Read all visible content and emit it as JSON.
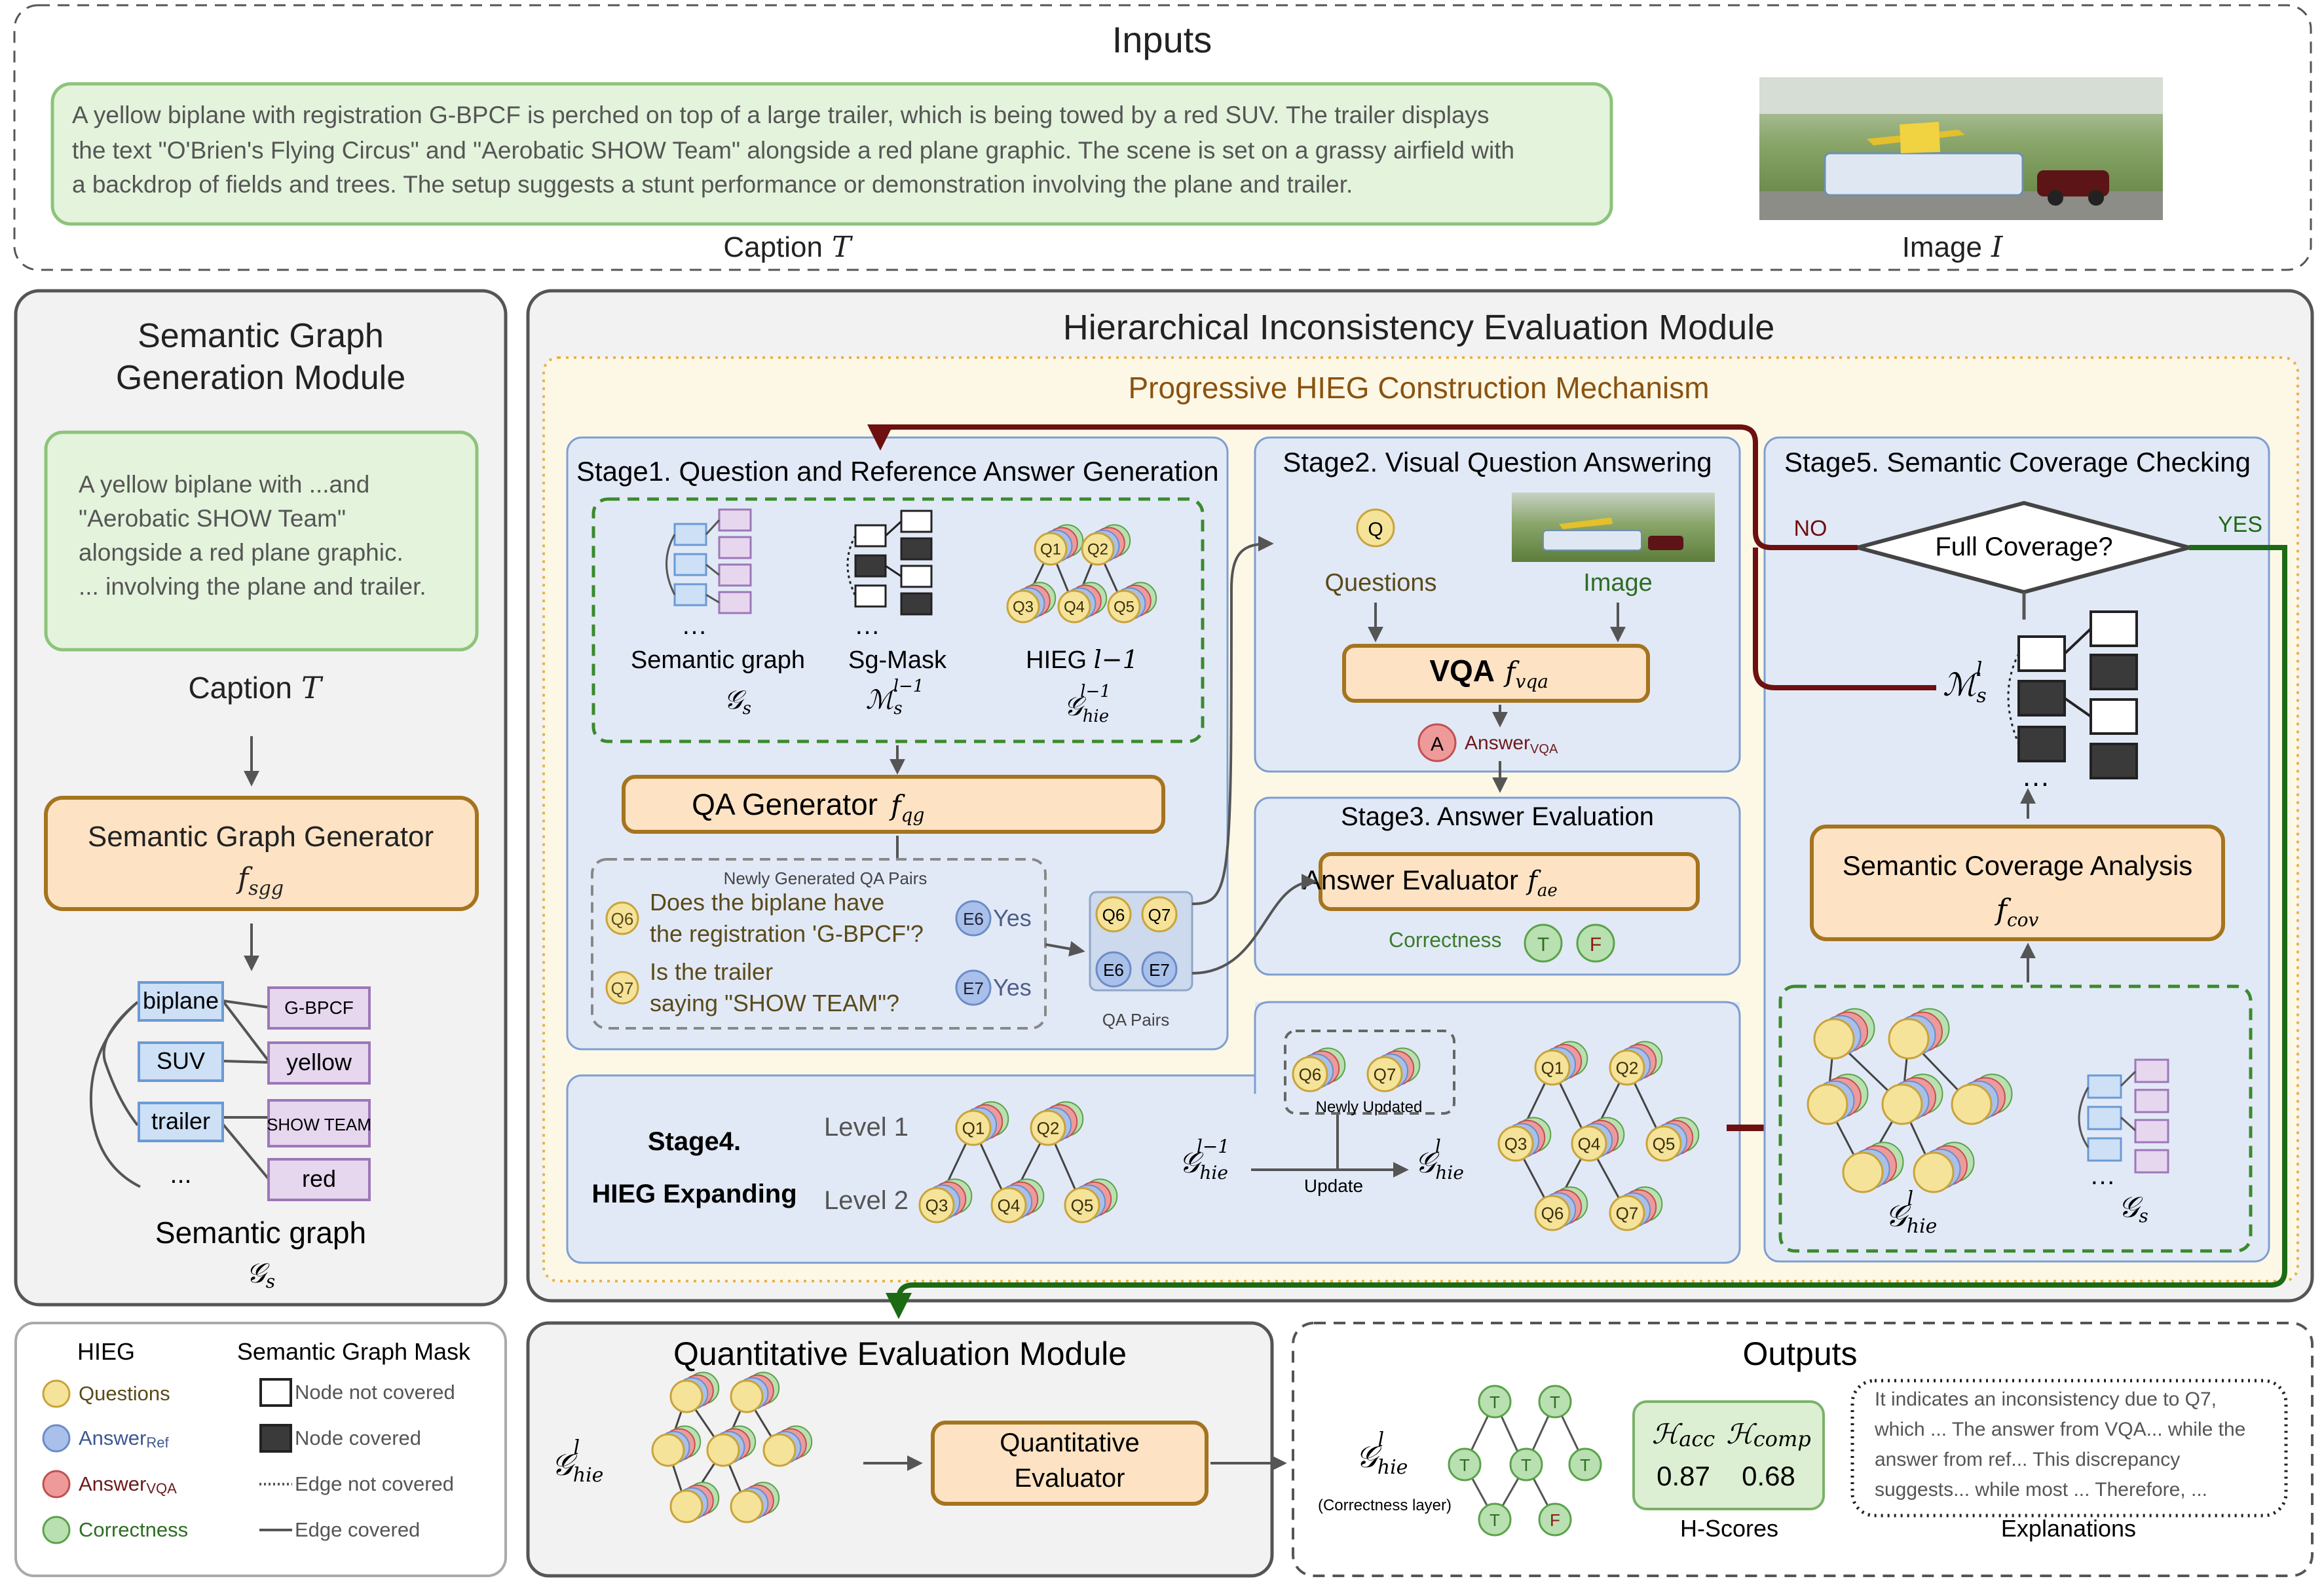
{
  "inputs": {
    "title": "Inputs",
    "caption_lines": [
      "A yellow biplane with registration G-BPCF is perched on top of a large trailer, which is being towed by a red SUV. The trailer displays",
      "the text \"O'Brien's Flying Circus\" and \"Aerobatic SHOW Team\" alongside a red plane graphic. The scene is set on a grassy airfield with",
      "a backdrop of fields and trees. The setup suggests a stunt performance or demonstration involving the plane and trailer."
    ],
    "caption_label": "Caption",
    "caption_symbol": "T",
    "image_label": "Image",
    "image_symbol": "I"
  },
  "sgg_module": {
    "title_lines": [
      "Semantic Graph",
      "Generation Module"
    ],
    "caption_box_lines": [
      "A yellow biplane with ...and",
      "\"Aerobatic SHOW Team\"",
      "alongside a red plane graphic.",
      "... involving the plane and trailer."
    ],
    "caption_label": "Caption",
    "caption_symbol": "T",
    "generator_title": "Semantic Graph Generator",
    "generator_symbol": "f_sgg",
    "nodes_left": [
      "biplane",
      "SUV",
      "trailer",
      "..."
    ],
    "nodes_right": [
      "G-BPCF",
      "yellow",
      "SHOW TEAM",
      "red"
    ],
    "graph_label": "Semantic graph",
    "graph_symbol": "G_s"
  },
  "hie_module": {
    "title": "Hierarchical Inconsistency Evaluation Module",
    "mechanism_title": "Progressive HIEG Construction Mechanism",
    "stage1": {
      "title": "Stage1. Question and Reference Answer Generation",
      "semantic_graph_label": "Semantic graph",
      "semantic_graph_symbol": "G_s",
      "sgmask_label": "Sg-Mask",
      "sgmask_symbol": "M_s^(l-1)",
      "hieg_label": "HIEG l-1",
      "hieg_symbol": "G_hie^(l-1)",
      "hieg_nodes": [
        "Q1",
        "Q2",
        "Q3",
        "Q4",
        "Q5"
      ],
      "generator_title": "QA Generator",
      "generator_symbol": "f_qg",
      "new_pairs_label": "Newly Generated QA Pairs",
      "qa_pairs": [
        {
          "q": "Q6",
          "lines": [
            "Does the biplane have",
            "the registration 'G-BPCF'?"
          ],
          "e": "E6",
          "answer": "Yes"
        },
        {
          "q": "Q7",
          "lines": [
            "Is the trailer",
            "saying \"SHOW TEAM\"?"
          ],
          "e": "E7",
          "answer": "Yes"
        }
      ],
      "qa_pairs_label": "QA Pairs"
    },
    "stage2": {
      "title": "Stage2. Visual Question Answering",
      "q_badge": "Q",
      "questions_label": "Questions",
      "image_label": "Image",
      "vqa_title": "VQA",
      "vqa_symbol": "f_vqa",
      "a_badge": "A",
      "answer_label": "Answer",
      "answer_sub": "VQA"
    },
    "stage3": {
      "title": "Stage3. Answer Evaluation",
      "evaluator_title": "Answer Evaluator",
      "evaluator_symbol": "f_ae",
      "correctness_label": "Correctness",
      "t_badge": "T",
      "f_badge": "F"
    },
    "stage4": {
      "title_lines": [
        "Stage4.",
        "HIEG Expanding"
      ],
      "level1": "Level 1",
      "level2": "Level 2",
      "level1_nodes": [
        "Q1",
        "Q2"
      ],
      "level2_nodes": [
        "Q3",
        "Q4",
        "Q5"
      ],
      "prev_symbol": "G_hie^(l-1)",
      "next_symbol": "G_hie^l",
      "update_label": "Update",
      "newly_updated_label": "Newly Updated",
      "new_nodes": [
        "Q6",
        "Q7"
      ],
      "result_nodes": [
        "Q1",
        "Q2",
        "Q3",
        "Q4",
        "Q5",
        "Q6",
        "Q7"
      ]
    },
    "stage5": {
      "title": "Stage5. Semantic Coverage Checking",
      "decision": "Full Coverage?",
      "no_label": "NO",
      "yes_label": "YES",
      "mask_symbol": "M_s^l",
      "analysis_title": "Semantic Coverage Analysis",
      "analysis_symbol": "f_cov",
      "hieg_symbol": "G_hie^l",
      "graph_symbol": "G_s"
    }
  },
  "legend": {
    "hieg_title": "HIEG",
    "mask_title": "Semantic Graph Mask",
    "questions": "Questions",
    "answer_ref": "Answer",
    "answer_ref_sub": "Ref",
    "answer_vqa": "Answer",
    "answer_vqa_sub": "VQA",
    "correctness": "Correctness",
    "node_not_covered": "Node not covered",
    "node_covered": "Node covered",
    "edge_not_covered": "Edge not covered",
    "edge_covered": "Edge covered"
  },
  "qe_module": {
    "title": "Quantitative Evaluation Module",
    "input_symbol": "G_hie^l",
    "evaluator_lines": [
      "Quantitative",
      "Evaluator"
    ]
  },
  "outputs": {
    "title": "Outputs",
    "graph_symbol": "G_hie^l",
    "graph_note": "(Correctness layer)",
    "scores": [
      {
        "symbol": "H_acc",
        "value": "0.87"
      },
      {
        "symbol": "H_comp",
        "value": "0.68"
      }
    ],
    "scores_label": "H-Scores",
    "explanation_lines": [
      "It indicates an inconsistency due to Q7,",
      "which ... The answer from VQA... while the",
      "answer from ref... This discrepancy",
      "suggests... while most ... Therefore, ..."
    ],
    "explanations_label": "Explanations",
    "tree_badges": [
      "T",
      "T",
      "T",
      "T",
      "T",
      "T",
      "F"
    ]
  },
  "colors": {
    "question": "#f5e39a",
    "answer_ref": "#a8c0ea",
    "answer_vqa": "#ee9a9a",
    "correctness": "#b9e0b0",
    "generator_fill": "#fde3c4",
    "generator_border": "#a5741f",
    "dark_red": "#6e1010",
    "dark_green": "#1c6a14"
  }
}
